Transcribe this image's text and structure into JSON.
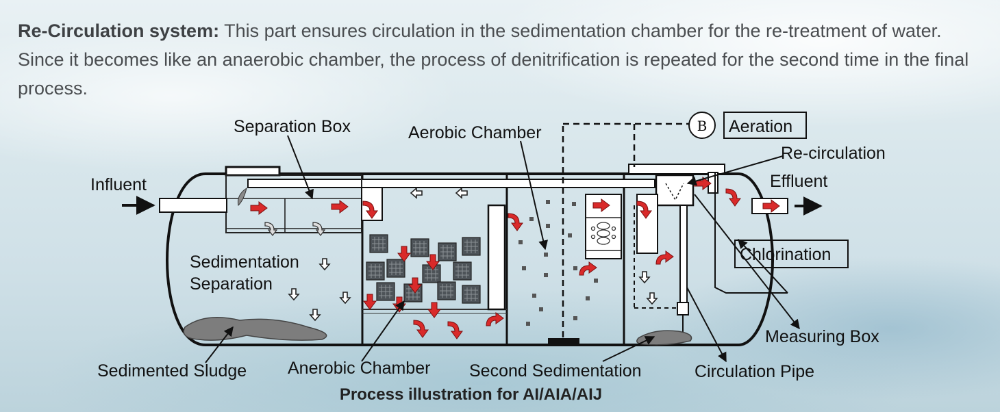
{
  "intro": {
    "lead": "Re-Circulation system:",
    "text": " This part ensures circulation in the sedimentation chamber for the re-treatment of water. Since it becomes like an anaerobic chamber, the process of denitrification is repeated for the second time in the final process."
  },
  "labels": {
    "separation_box": "Separation Box",
    "aerobic_chamber": "Aerobic Chamber",
    "b_marker": "B",
    "aeration": "Aeration",
    "recirculation": "Re-circulation",
    "influent": "Influent",
    "effluent": "Effluent",
    "sedimentation": "Sedimentation",
    "separation": "Separation",
    "chlorination": "Chlorination",
    "measuring_box": "Measuring Box",
    "sedimented_sludge": "Sedimented Sludge",
    "anerobic_chamber": "Anerobic Chamber",
    "second_sedimentation": "Second Sedimentation",
    "circulation_pipe": "Circulation Pipe"
  },
  "caption": "Process illustration for AI/AIA/AIJ",
  "colors": {
    "flow_arrow": "#d92a2a",
    "line": "#111111",
    "sludge": "#7d7d7d"
  }
}
